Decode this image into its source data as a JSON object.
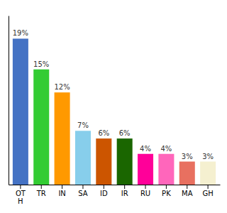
{
  "chart_data": {
    "type": "bar",
    "categories": [
      "OT\nH",
      "TR",
      "IN",
      "SA",
      "ID",
      "IR",
      "RU",
      "PK",
      "MA",
      "GH"
    ],
    "values": [
      19,
      15,
      12,
      7,
      6,
      6,
      4,
      4,
      3,
      3
    ],
    "value_labels": [
      "19%",
      "15%",
      "12%",
      "7%",
      "6%",
      "6%",
      "4%",
      "4%",
      "3%",
      "3%"
    ],
    "colors": [
      "#4472c4",
      "#33cc33",
      "#ff9900",
      "#87ceeb",
      "#cc5500",
      "#1a6600",
      "#ff0099",
      "#ff66bb",
      "#e87060",
      "#f5f0d0"
    ],
    "ylim": [
      0,
      22
    ],
    "data_labels": true,
    "tick_labels": "x",
    "grid": false
  }
}
